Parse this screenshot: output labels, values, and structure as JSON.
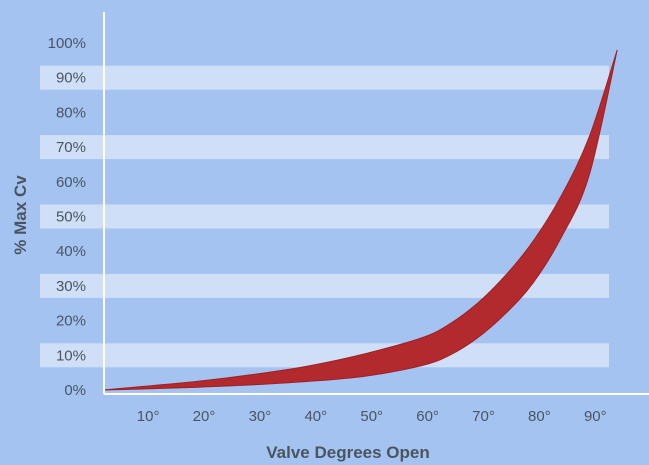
{
  "chart_data": {
    "type": "area",
    "title": "",
    "xlabel": "Valve Degrees Open",
    "ylabel": "% Max Cv",
    "x_ticks": [
      "10°",
      "20°",
      "30°",
      "40°",
      "50°",
      "60°",
      "70°",
      "80°",
      "90°"
    ],
    "y_ticks": [
      "0%",
      "10%",
      "20%",
      "30%",
      "40%",
      "50%",
      "60%",
      "70%",
      "80%",
      "90%",
      "100%"
    ],
    "xlim": [
      3,
      98
    ],
    "ylim": [
      0,
      100
    ],
    "grid": "alternating horizontal bands",
    "series": [
      {
        "band": "upper",
        "x": [
          3,
          10,
          20,
          30,
          40,
          50,
          60,
          65,
          70,
          75,
          80,
          85,
          90,
          95
        ],
        "y": [
          0,
          1,
          2.5,
          4.5,
          7,
          10.5,
          15,
          19,
          25,
          33,
          43,
          56,
          73,
          98
        ]
      },
      {
        "band": "lower",
        "x": [
          3,
          10,
          20,
          30,
          40,
          50,
          60,
          65,
          70,
          75,
          80,
          85,
          90,
          95
        ],
        "y": [
          0,
          0.3,
          0.8,
          1.5,
          2.5,
          4,
          7,
          10,
          15,
          22,
          31,
          44,
          62,
          98
        ]
      }
    ],
    "colors": {
      "background": "#a4c3f1",
      "band": "#cfdff7",
      "fill": "#b22a2e",
      "axis": "#ffffff",
      "text": "#4b5560"
    }
  }
}
